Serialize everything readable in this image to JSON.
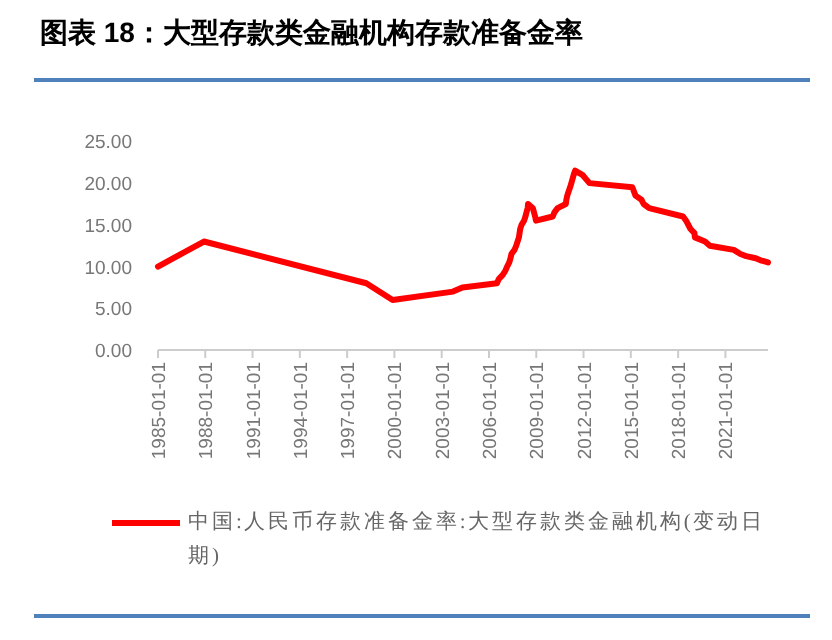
{
  "chart_data": {
    "type": "line",
    "title": "图表 18：大型存款类金融机构存款准备金率",
    "x": [
      "1985-01-01",
      "1987-12-01",
      "1998-03-21",
      "1999-11-21",
      "2003-09-21",
      "2004-04-25",
      "2006-07-05",
      "2006-08-15",
      "2006-11-15",
      "2007-01-15",
      "2007-02-25",
      "2007-04-16",
      "2007-05-15",
      "2007-06-05",
      "2007-08-15",
      "2007-09-25",
      "2007-10-25",
      "2007-11-26",
      "2007-12-25",
      "2008-01-25",
      "2008-03-25",
      "2008-04-25",
      "2008-05-20",
      "2008-06-15",
      "2008-06-25",
      "2008-10-15",
      "2008-12-05",
      "2008-12-25",
      "2010-01-18",
      "2010-02-25",
      "2010-05-10",
      "2010-11-16",
      "2010-11-29",
      "2010-12-20",
      "2011-01-20",
      "2011-02-24",
      "2011-03-25",
      "2011-04-21",
      "2011-05-18",
      "2011-06-20",
      "2011-12-05",
      "2012-02-24",
      "2012-05-18",
      "2015-02-05",
      "2015-04-20",
      "2015-09-06",
      "2015-10-24",
      "2016-03-01",
      "2018-04-25",
      "2018-07-05",
      "2018-10-15",
      "2019-01-15",
      "2019-01-25",
      "2019-09-16",
      "2020-01-06",
      "2021-07-15",
      "2021-12-15",
      "2022-04-25",
      "2022-12-05",
      "2023-03-27",
      "2023-09-15"
    ],
    "series": [
      {
        "name": "中国:人民币存款准备金率:大型存款类金融机构(变动日期)",
        "color": "#ff0000",
        "values": [
          10,
          13,
          8,
          6,
          7,
          7.5,
          8,
          8.5,
          9,
          9.5,
          10,
          10.5,
          11,
          11.5,
          12,
          12.5,
          13,
          13.5,
          14.5,
          15,
          15.5,
          16,
          16.5,
          17,
          17.5,
          17,
          16,
          15.5,
          16,
          16.5,
          17,
          17.5,
          18,
          18.5,
          19,
          19.5,
          20,
          20.5,
          21,
          21.5,
          21,
          20.5,
          20,
          19.5,
          18.5,
          18,
          17.5,
          17,
          16,
          15.5,
          14.5,
          14,
          13.5,
          13,
          12.5,
          12,
          11.5,
          11.25,
          11,
          10.75,
          10.5
        ]
      }
    ],
    "xlim": [
      "1985-01-01",
      "2023-09-15"
    ],
    "xticks": [
      "1985-01-01",
      "1988-01-01",
      "1991-01-01",
      "1994-01-01",
      "1997-01-01",
      "2000-01-01",
      "2003-01-01",
      "2006-01-01",
      "2009-01-01",
      "2012-01-01",
      "2015-01-01",
      "2018-01-01",
      "2021-01-01"
    ],
    "ylim": [
      0,
      25
    ],
    "yticks": [
      {
        "value": 0,
        "label": "0.00"
      },
      {
        "value": 5,
        "label": "5.00"
      },
      {
        "value": 10,
        "label": "10.00"
      },
      {
        "value": 15,
        "label": "15.00"
      },
      {
        "value": 20,
        "label": "20.00"
      },
      {
        "value": 25,
        "label": "25.00"
      }
    ],
    "legend": "bottom",
    "marker": "none",
    "line_style": "solid"
  }
}
